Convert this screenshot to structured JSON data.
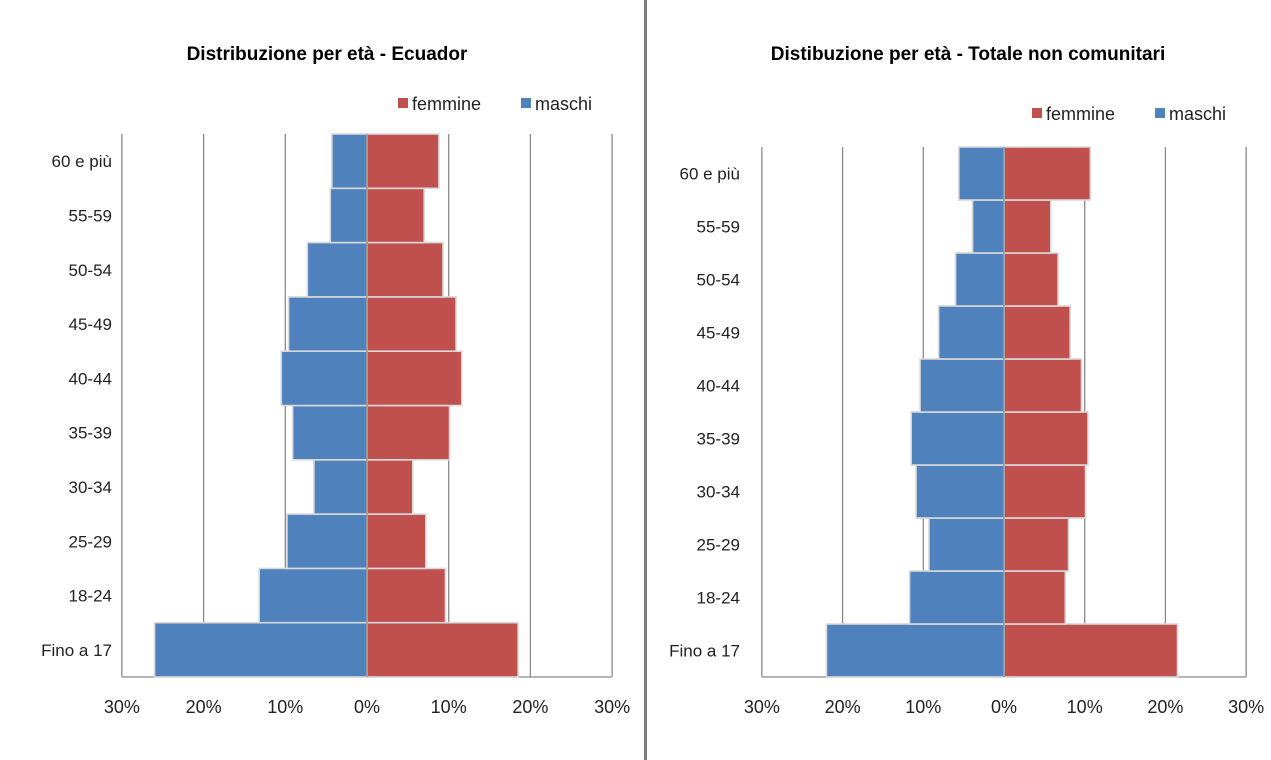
{
  "chart_data": [
    {
      "type": "bar",
      "orientation": "horizontal",
      "title": "Distribuzione per età - Ecuador",
      "categories": [
        "Fino a 17",
        "18-24",
        "25-29",
        "30-34",
        "35-39",
        "40-44",
        "45-49",
        "50-54",
        "55-59",
        "60 e più"
      ],
      "series": [
        {
          "name": "femmine",
          "color": "#c0504d",
          "values": [
            18.5,
            9.6,
            7.2,
            5.6,
            10.1,
            11.6,
            10.9,
            9.3,
            7.0,
            8.8
          ]
        },
        {
          "name": "maschi",
          "color": "#4f81bd",
          "values": [
            -26.0,
            -13.2,
            -9.8,
            -6.5,
            -9.1,
            -10.5,
            -9.6,
            -7.3,
            -4.5,
            -4.3
          ]
        }
      ],
      "xlim": [
        -30,
        30
      ],
      "xticks": [
        "30%",
        "20%",
        "10%",
        "0%",
        "10%",
        "20%",
        "30%"
      ],
      "legend": "top-right",
      "grid": true
    },
    {
      "type": "bar",
      "orientation": "horizontal",
      "title": "Distibuzione per età - Totale non comunitari",
      "categories": [
        "Fino a 17",
        "18-24",
        "25-29",
        "30-34",
        "35-39",
        "40-44",
        "45-49",
        "50-54",
        "55-59",
        "60 e più"
      ],
      "series": [
        {
          "name": "femmine",
          "color": "#c0504d",
          "values": [
            21.5,
            7.6,
            8.0,
            10.1,
            10.4,
            9.6,
            8.2,
            6.7,
            5.8,
            10.7
          ]
        },
        {
          "name": "maschi",
          "color": "#4f81bd",
          "values": [
            -22.0,
            -11.7,
            -9.3,
            -10.9,
            -11.5,
            -10.4,
            -8.1,
            -6.0,
            -3.9,
            -5.6
          ]
        }
      ],
      "xlim": [
        -30,
        30
      ],
      "xticks": [
        "30%",
        "20%",
        "10%",
        "0%",
        "10%",
        "20%",
        "30%"
      ],
      "legend": "top-right",
      "grid": true
    }
  ]
}
